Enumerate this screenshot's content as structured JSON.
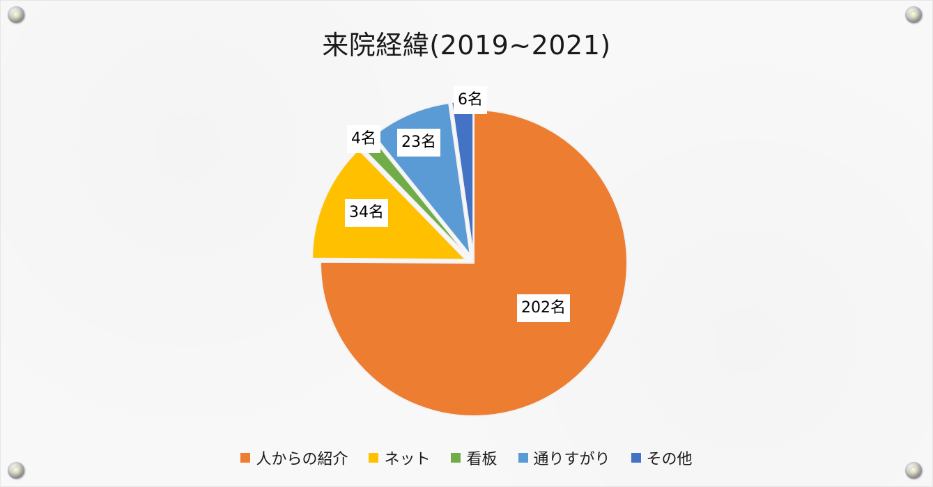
{
  "chart_data": {
    "type": "pie",
    "title": "来院経緯(2019~2021)",
    "categories": [
      "人からの紹介",
      "ネット",
      "看板",
      "通りすがり",
      "その他"
    ],
    "values": [
      202,
      34,
      4,
      23,
      6
    ],
    "data_labels": [
      "202名",
      "34名",
      "4名",
      "23名",
      "6名"
    ],
    "colors": [
      "#ED7D31",
      "#FFC000",
      "#70AD47",
      "#5B9BD5",
      "#4472C4"
    ],
    "exploded": [
      false,
      true,
      true,
      true,
      true
    ],
    "legend_position": "bottom"
  }
}
